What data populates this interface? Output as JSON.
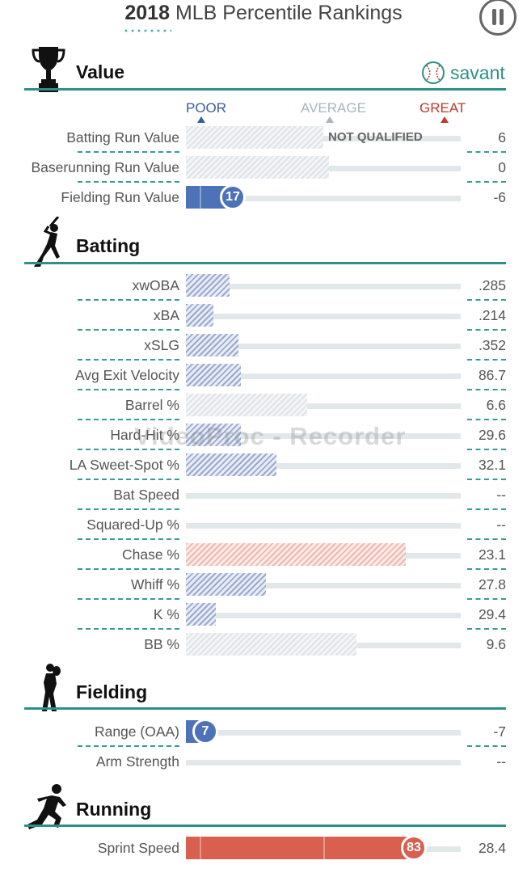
{
  "header": {
    "year": "2018",
    "title": "MLB Percentile Rankings"
  },
  "brand": {
    "name": "savant",
    "color": "#2f8f87"
  },
  "legend": {
    "poor": "POOR",
    "average": "AVERAGE",
    "great": "GREAT",
    "poor_color": "#3a5ba0",
    "average_color": "#a7b7bd",
    "great_color": "#c0392b"
  },
  "watermark": "VideoProc - Recorder",
  "sections": {
    "value": {
      "title": "Value",
      "icon": "trophy-icon"
    },
    "batting": {
      "title": "Batting",
      "icon": "batter-icon"
    },
    "fielding": {
      "title": "Fielding",
      "icon": "fielder-icon"
    },
    "running": {
      "title": "Running",
      "icon": "runner-icon"
    }
  },
  "rows": [
    {
      "label": "Batting Run Value",
      "value": "6",
      "note": "NOT QUALIFIED",
      "percentile": 50,
      "style": "hatch-grey"
    },
    {
      "label": "Baserunning Run Value",
      "value": "0",
      "percentile": 52,
      "style": "hatch-grey"
    },
    {
      "label": "Fielding Run Value",
      "value": "-6",
      "percentile": 17,
      "badge": "17",
      "style": "solid-blue"
    },
    {
      "label": "xwOBA",
      "value": ".285",
      "percentile": 16,
      "style": "hatch-blue"
    },
    {
      "label": "xBA",
      "value": ".214",
      "percentile": 10,
      "style": "hatch-blue"
    },
    {
      "label": "xSLG",
      "value": ".352",
      "percentile": 19,
      "style": "hatch-blue"
    },
    {
      "label": "Avg Exit Velocity",
      "value": "86.7",
      "percentile": 20,
      "style": "hatch-blue"
    },
    {
      "label": "Barrel %",
      "value": "6.6",
      "percentile": 44,
      "style": "hatch-grey"
    },
    {
      "label": "Hard-Hit %",
      "value": "29.6",
      "percentile": 20,
      "style": "hatch-blue"
    },
    {
      "label": "LA Sweet-Spot %",
      "value": "32.1",
      "percentile": 33,
      "style": "hatch-blue"
    },
    {
      "label": "Bat Speed",
      "value": "--",
      "percentile": 0,
      "style": "none"
    },
    {
      "label": "Squared-Up %",
      "value": "--",
      "percentile": 0,
      "style": "none"
    },
    {
      "label": "Chase %",
      "value": "23.1",
      "percentile": 80,
      "style": "hatch-red"
    },
    {
      "label": "Whiff %",
      "value": "27.8",
      "percentile": 29,
      "style": "hatch-blue"
    },
    {
      "label": "K %",
      "value": "29.4",
      "percentile": 11,
      "style": "hatch-blue"
    },
    {
      "label": "BB %",
      "value": "9.6",
      "percentile": 62,
      "style": "hatch-grey"
    },
    {
      "label": "Range (OAA)",
      "value": "-7",
      "percentile": 7,
      "badge": "7",
      "style": "solid-blue"
    },
    {
      "label": "Arm Strength",
      "value": "--",
      "percentile": 0,
      "style": "none"
    },
    {
      "label": "Sprint Speed",
      "value": "28.4",
      "percentile": 83,
      "badge": "83",
      "style": "solid-red"
    }
  ]
}
